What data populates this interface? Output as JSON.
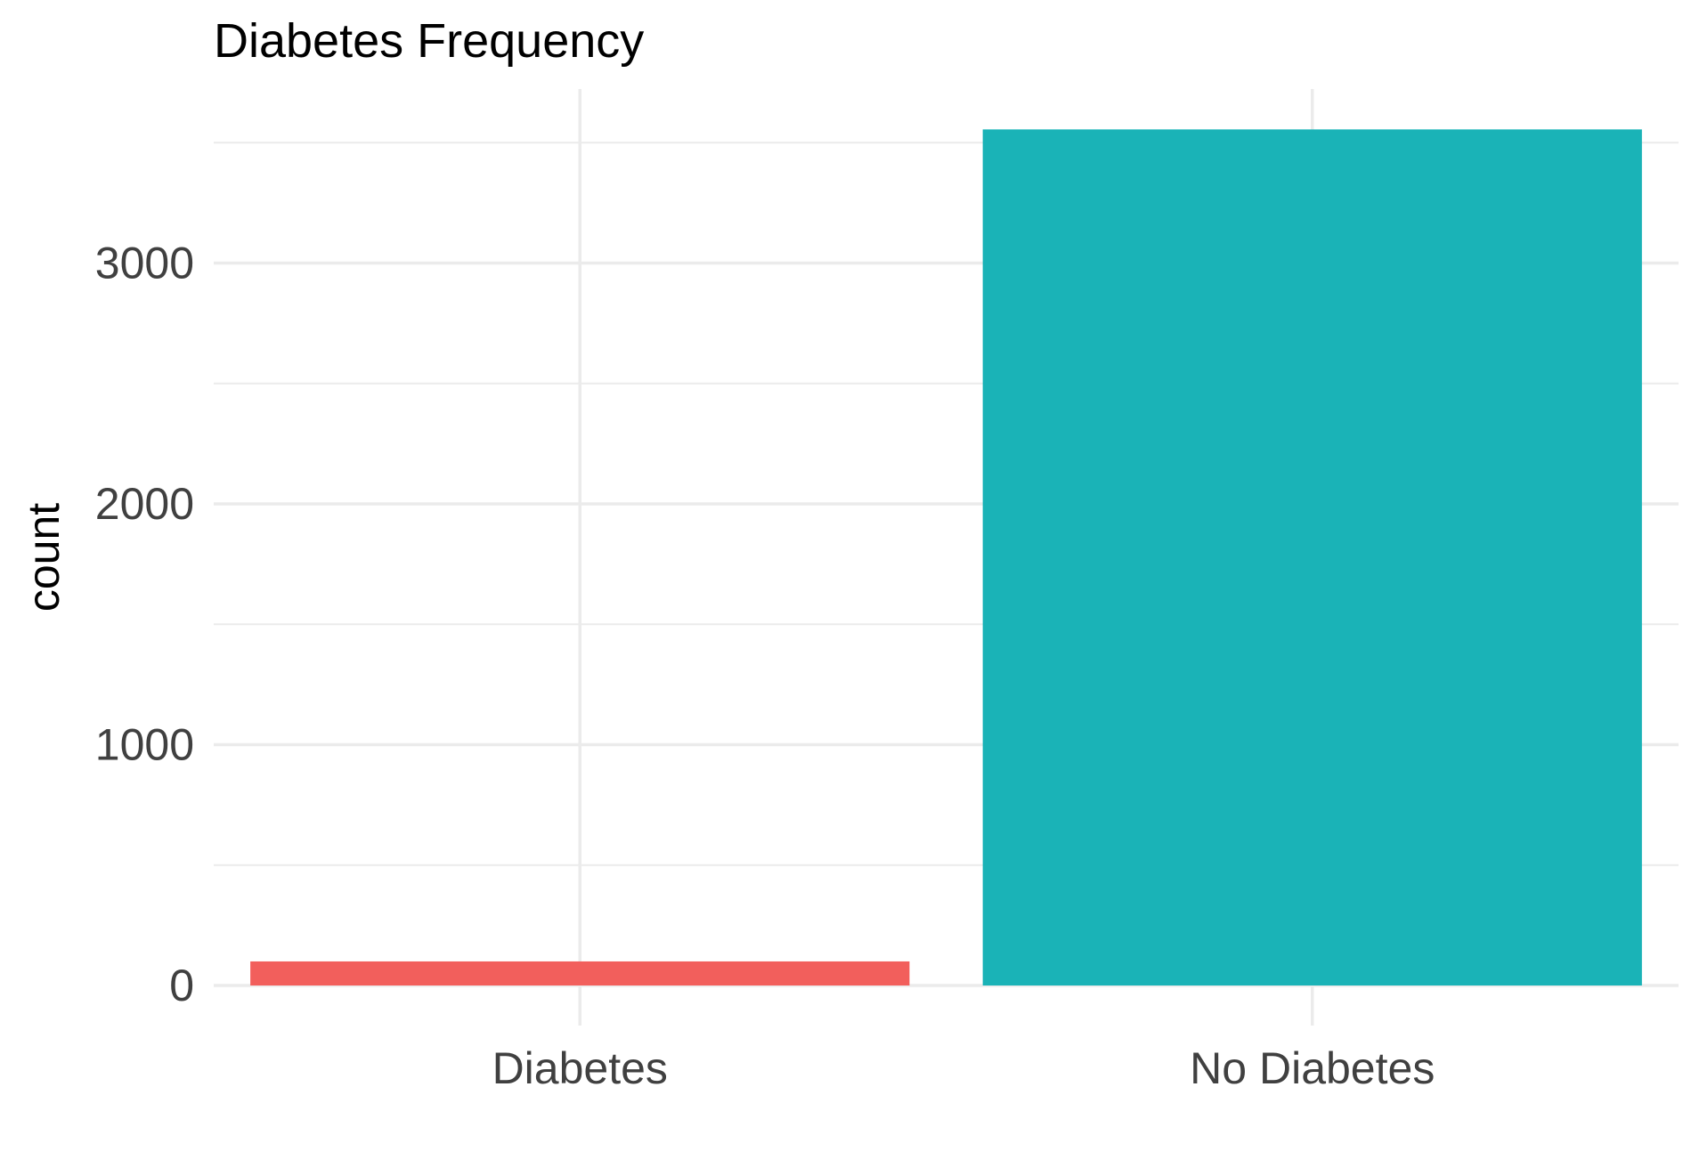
{
  "chart_data": {
    "type": "bar",
    "title": "Diabetes Frequency",
    "xlabel": "",
    "ylabel": "count",
    "categories": [
      "Diabetes",
      "No Diabetes"
    ],
    "values": [
      100,
      3555
    ],
    "colors": [
      "#F8766D",
      "#00BFC4"
    ],
    "ylim": [
      0,
      3730
    ],
    "y_ticks": [
      0,
      1000,
      2000,
      3000
    ],
    "y_tick_labels": [
      "0",
      "1000",
      "2000",
      "3000"
    ],
    "grid": true,
    "legend": "none",
    "colors_style": {
      "diabetes_bar": "#F25F5C",
      "no_diabetes_bar": "#1AB3B7",
      "grid": "#EBEBEB",
      "tick_text": "#404040",
      "background": "#FFFFFF"
    }
  }
}
